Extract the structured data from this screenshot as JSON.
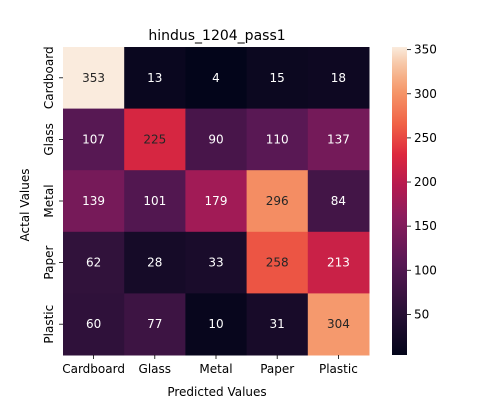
{
  "chart_data": {
    "type": "heatmap",
    "title": "hindus_1204_pass1",
    "xlabel": "Predicted Values",
    "ylabel": "Actal Values",
    "x_categories": [
      "Cardboard",
      "Glass",
      "Metal",
      "Paper",
      "Plastic"
    ],
    "y_categories": [
      "Cardboard",
      "Glass",
      "Metal",
      "Paper",
      "Plastic"
    ],
    "values": [
      [
        353,
        13,
        4,
        15,
        18
      ],
      [
        107,
        225,
        90,
        110,
        137
      ],
      [
        139,
        101,
        179,
        296,
        84
      ],
      [
        62,
        28,
        33,
        258,
        213
      ],
      [
        60,
        77,
        10,
        31,
        304
      ]
    ],
    "colorbar": {
      "range": [
        4,
        353
      ],
      "ticks": [
        50,
        100,
        150,
        200,
        250,
        300,
        350
      ],
      "colormap": "rocket"
    },
    "grid": false
  }
}
